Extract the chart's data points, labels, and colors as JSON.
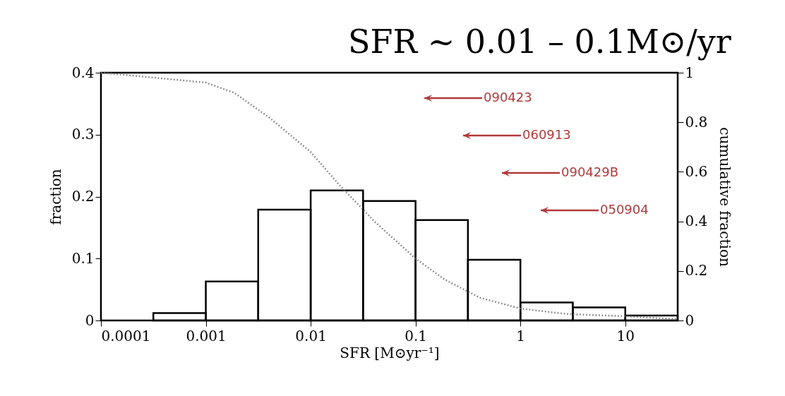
{
  "chart_data": {
    "type": "histogram",
    "title": "SFR ∼ 0.01 – 0.1M⊙/yr",
    "xlabel": "SFR [M⊙yr⁻¹]",
    "ylabel": "fraction",
    "y2label": "cumulative fraction",
    "bins": [
      0.000316,
      0.001,
      0.00316,
      0.01,
      0.0316,
      0.1,
      0.316,
      1,
      3.16,
      10,
      31.6
    ],
    "values": [
      0.012,
      0.063,
      0.179,
      0.21,
      0.193,
      0.162,
      0.098,
      0.029,
      0.021,
      0.008
    ],
    "color": "#000000",
    "log": "x",
    "xlim": [
      0.0001,
      31.62
    ],
    "xticks": [
      0.0001,
      0.001,
      0.01,
      0.1,
      1,
      10
    ],
    "ylim": [
      0,
      0.4
    ],
    "yticks": [
      0,
      0.1,
      0.2,
      0.3,
      0.4
    ],
    "y2lim": [
      0,
      1
    ],
    "y2ticks": [
      0,
      0.2,
      0.4,
      0.6,
      0.8,
      1
    ],
    "series": [
      {
        "type": "line",
        "axis": "y2",
        "color": "#777777",
        "line_style": "dotted",
        "x": [
          0.0001,
          0.000183,
          0.001,
          0.00185,
          0.004,
          0.01,
          0.0185,
          0.0405,
          0.1,
          0.19,
          0.41,
          1,
          2.8,
          10,
          31.6
        ],
        "values": [
          1,
          0.99,
          0.96,
          0.92,
          0.82,
          0.68,
          0.55,
          0.4,
          0.25,
          0.165,
          0.092,
          0.048,
          0.026,
          0.017,
          0.005
        ]
      }
    ],
    "annotations": [
      "090423",
      "060913",
      "090429B",
      "050904"
    ],
    "grid": false
  }
}
